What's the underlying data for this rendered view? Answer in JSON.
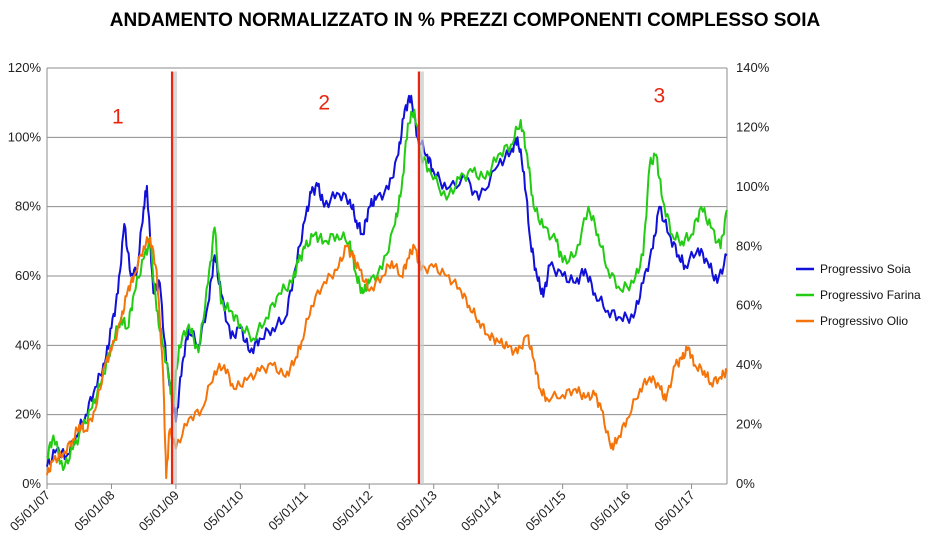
{
  "chart_data": {
    "type": "line",
    "title": "ANDAMENTO NORMALIZZATO IN %  PREZZI COMPONENTI  COMPLESSO SOIA",
    "xlabel": "",
    "ylabel": "",
    "x_ticks": [
      "05/01/07",
      "05/01/08",
      "05/01/09",
      "05/01/10",
      "05/01/11",
      "05/01/12",
      "05/01/13",
      "05/01/14",
      "05/01/15",
      "05/01/16",
      "05/01/17"
    ],
    "x_range": [
      2007.0,
      2017.55
    ],
    "y_left": {
      "range": [
        0,
        120
      ],
      "ticks": [
        0,
        20,
        40,
        60,
        80,
        100,
        120
      ],
      "labels": [
        "0%",
        "20%",
        "40%",
        "60%",
        "80%",
        "100%",
        "120%"
      ]
    },
    "y_right": {
      "range": [
        0,
        140
      ],
      "ticks": [
        0,
        20,
        40,
        60,
        80,
        100,
        120,
        140
      ],
      "labels": [
        "0%",
        "20%",
        "40%",
        "60%",
        "80%",
        "100%",
        "120%",
        "140%"
      ]
    },
    "grid": true,
    "legend_position": "right",
    "series": [
      {
        "name": "Progressivo Soia",
        "color": "#1010d8",
        "axis": "left",
        "points": [
          [
            2007.0,
            5
          ],
          [
            2007.15,
            10
          ],
          [
            2007.3,
            8
          ],
          [
            2007.45,
            14
          ],
          [
            2007.6,
            20
          ],
          [
            2007.75,
            28
          ],
          [
            2007.9,
            35
          ],
          [
            2008.0,
            45
          ],
          [
            2008.1,
            55
          ],
          [
            2008.2,
            75
          ],
          [
            2008.3,
            60
          ],
          [
            2008.4,
            62
          ],
          [
            2008.5,
            80
          ],
          [
            2008.55,
            86
          ],
          [
            2008.65,
            55
          ],
          [
            2008.75,
            58
          ],
          [
            2008.85,
            35
          ],
          [
            2008.95,
            25
          ],
          [
            2009.0,
            18
          ],
          [
            2009.1,
            35
          ],
          [
            2009.2,
            45
          ],
          [
            2009.35,
            40
          ],
          [
            2009.5,
            52
          ],
          [
            2009.6,
            66
          ],
          [
            2009.7,
            55
          ],
          [
            2009.85,
            42
          ],
          [
            2010.0,
            45
          ],
          [
            2010.15,
            38
          ],
          [
            2010.3,
            42
          ],
          [
            2010.5,
            45
          ],
          [
            2010.7,
            48
          ],
          [
            2010.85,
            62
          ],
          [
            2011.0,
            76
          ],
          [
            2011.1,
            84
          ],
          [
            2011.2,
            86
          ],
          [
            2011.3,
            80
          ],
          [
            2011.5,
            84
          ],
          [
            2011.7,
            82
          ],
          [
            2011.8,
            76
          ],
          [
            2011.9,
            72
          ],
          [
            2012.0,
            80
          ],
          [
            2012.1,
            82
          ],
          [
            2012.3,
            85
          ],
          [
            2012.45,
            95
          ],
          [
            2012.55,
            108
          ],
          [
            2012.65,
            112
          ],
          [
            2012.75,
            100
          ],
          [
            2012.9,
            95
          ],
          [
            2013.0,
            90
          ],
          [
            2013.2,
            85
          ],
          [
            2013.5,
            88
          ],
          [
            2013.7,
            82
          ],
          [
            2014.0,
            92
          ],
          [
            2014.2,
            96
          ],
          [
            2014.3,
            100
          ],
          [
            2014.4,
            90
          ],
          [
            2014.5,
            70
          ],
          [
            2014.6,
            60
          ],
          [
            2014.7,
            54
          ],
          [
            2014.8,
            63
          ],
          [
            2015.0,
            60
          ],
          [
            2015.2,
            58
          ],
          [
            2015.35,
            62
          ],
          [
            2015.5,
            55
          ],
          [
            2015.7,
            50
          ],
          [
            2015.9,
            48
          ],
          [
            2016.1,
            48
          ],
          [
            2016.25,
            58
          ],
          [
            2016.4,
            68
          ],
          [
            2016.5,
            80
          ],
          [
            2016.65,
            72
          ],
          [
            2016.8,
            66
          ],
          [
            2016.9,
            63
          ],
          [
            2017.1,
            68
          ],
          [
            2017.25,
            64
          ],
          [
            2017.4,
            58
          ],
          [
            2017.55,
            66
          ]
        ]
      },
      {
        "name": "Progressivo Farina",
        "color": "#22cc12",
        "axis": "left",
        "points": [
          [
            2007.0,
            8
          ],
          [
            2007.1,
            14
          ],
          [
            2007.25,
            4
          ],
          [
            2007.4,
            10
          ],
          [
            2007.55,
            16
          ],
          [
            2007.7,
            22
          ],
          [
            2007.85,
            30
          ],
          [
            2008.0,
            40
          ],
          [
            2008.15,
            48
          ],
          [
            2008.25,
            45
          ],
          [
            2008.35,
            55
          ],
          [
            2008.5,
            65
          ],
          [
            2008.6,
            70
          ],
          [
            2008.7,
            50
          ],
          [
            2008.8,
            40
          ],
          [
            2008.9,
            30
          ],
          [
            2008.95,
            22
          ],
          [
            2009.05,
            40
          ],
          [
            2009.2,
            46
          ],
          [
            2009.35,
            38
          ],
          [
            2009.5,
            58
          ],
          [
            2009.6,
            74
          ],
          [
            2009.7,
            52
          ],
          [
            2009.85,
            50
          ],
          [
            2010.0,
            46
          ],
          [
            2010.2,
            42
          ],
          [
            2010.4,
            48
          ],
          [
            2010.6,
            55
          ],
          [
            2010.8,
            58
          ],
          [
            2010.9,
            64
          ],
          [
            2011.0,
            68
          ],
          [
            2011.15,
            72
          ],
          [
            2011.3,
            70
          ],
          [
            2011.5,
            72
          ],
          [
            2011.7,
            70
          ],
          [
            2011.8,
            60
          ],
          [
            2011.9,
            55
          ],
          [
            2012.0,
            58
          ],
          [
            2012.2,
            62
          ],
          [
            2012.4,
            75
          ],
          [
            2012.5,
            85
          ],
          [
            2012.6,
            104
          ],
          [
            2012.7,
            108
          ],
          [
            2012.8,
            95
          ],
          [
            2012.95,
            90
          ],
          [
            2013.2,
            82
          ],
          [
            2013.4,
            88
          ],
          [
            2013.6,
            90
          ],
          [
            2013.8,
            88
          ],
          [
            2014.0,
            95
          ],
          [
            2014.2,
            98
          ],
          [
            2014.35,
            105
          ],
          [
            2014.45,
            95
          ],
          [
            2014.55,
            80
          ],
          [
            2014.7,
            74
          ],
          [
            2014.9,
            70
          ],
          [
            2015.0,
            64
          ],
          [
            2015.2,
            66
          ],
          [
            2015.4,
            80
          ],
          [
            2015.55,
            72
          ],
          [
            2015.7,
            62
          ],
          [
            2015.9,
            56
          ],
          [
            2016.1,
            58
          ],
          [
            2016.25,
            66
          ],
          [
            2016.35,
            92
          ],
          [
            2016.45,
            95
          ],
          [
            2016.55,
            82
          ],
          [
            2016.7,
            72
          ],
          [
            2016.85,
            70
          ],
          [
            2017.0,
            72
          ],
          [
            2017.15,
            80
          ],
          [
            2017.3,
            74
          ],
          [
            2017.45,
            68
          ],
          [
            2017.55,
            79
          ]
        ]
      },
      {
        "name": "Progressivo Olio",
        "color": "#f5740a",
        "axis": "right",
        "points": [
          [
            2007.0,
            3
          ],
          [
            2007.1,
            8
          ],
          [
            2007.25,
            10
          ],
          [
            2007.4,
            15
          ],
          [
            2007.5,
            20
          ],
          [
            2007.6,
            18
          ],
          [
            2007.75,
            25
          ],
          [
            2007.9,
            40
          ],
          [
            2008.0,
            45
          ],
          [
            2008.15,
            55
          ],
          [
            2008.25,
            65
          ],
          [
            2008.35,
            70
          ],
          [
            2008.5,
            80
          ],
          [
            2008.6,
            83
          ],
          [
            2008.7,
            72
          ],
          [
            2008.8,
            38
          ],
          [
            2008.85,
            2
          ],
          [
            2008.9,
            18
          ],
          [
            2009.0,
            12
          ],
          [
            2009.2,
            22
          ],
          [
            2009.4,
            25
          ],
          [
            2009.6,
            38
          ],
          [
            2009.75,
            40
          ],
          [
            2009.9,
            32
          ],
          [
            2010.1,
            35
          ],
          [
            2010.3,
            38
          ],
          [
            2010.5,
            40
          ],
          [
            2010.7,
            36
          ],
          [
            2010.85,
            42
          ],
          [
            2010.95,
            48
          ],
          [
            2011.1,
            60
          ],
          [
            2011.3,
            68
          ],
          [
            2011.5,
            72
          ],
          [
            2011.65,
            80
          ],
          [
            2011.75,
            76
          ],
          [
            2011.85,
            72
          ],
          [
            2012.0,
            65
          ],
          [
            2012.2,
            70
          ],
          [
            2012.35,
            75
          ],
          [
            2012.5,
            70
          ],
          [
            2012.6,
            76
          ],
          [
            2012.7,
            80
          ],
          [
            2012.8,
            72
          ],
          [
            2013.0,
            73
          ],
          [
            2013.2,
            70
          ],
          [
            2013.4,
            66
          ],
          [
            2013.55,
            60
          ],
          [
            2013.7,
            55
          ],
          [
            2013.85,
            50
          ],
          [
            2014.0,
            48
          ],
          [
            2014.15,
            46
          ],
          [
            2014.3,
            44
          ],
          [
            2014.45,
            50
          ],
          [
            2014.55,
            42
          ],
          [
            2014.65,
            32
          ],
          [
            2014.75,
            29
          ],
          [
            2015.0,
            30
          ],
          [
            2015.2,
            32
          ],
          [
            2015.35,
            29
          ],
          [
            2015.5,
            30
          ],
          [
            2015.6,
            25
          ],
          [
            2015.75,
            12
          ],
          [
            2015.85,
            15
          ],
          [
            2016.0,
            22
          ],
          [
            2016.2,
            32
          ],
          [
            2016.35,
            36
          ],
          [
            2016.5,
            33
          ],
          [
            2016.6,
            28
          ],
          [
            2016.75,
            40
          ],
          [
            2016.85,
            42
          ],
          [
            2016.95,
            46
          ],
          [
            2017.05,
            40
          ],
          [
            2017.2,
            38
          ],
          [
            2017.3,
            34
          ],
          [
            2017.45,
            36
          ],
          [
            2017.55,
            38
          ]
        ]
      }
    ],
    "vertical_markers": [
      {
        "x": 2008.94,
        "y_range_left": [
          0,
          119
        ],
        "color": "#e8260f"
      },
      {
        "x": 2012.77,
        "y_range_left": [
          0,
          119
        ],
        "color": "#e8260f"
      }
    ],
    "annotations": [
      {
        "text": "1",
        "x": 2008.1,
        "y_left": 104
      },
      {
        "text": "2",
        "x": 2011.3,
        "y_left": 108
      },
      {
        "text": "3",
        "x": 2016.5,
        "y_left": 110
      }
    ]
  }
}
